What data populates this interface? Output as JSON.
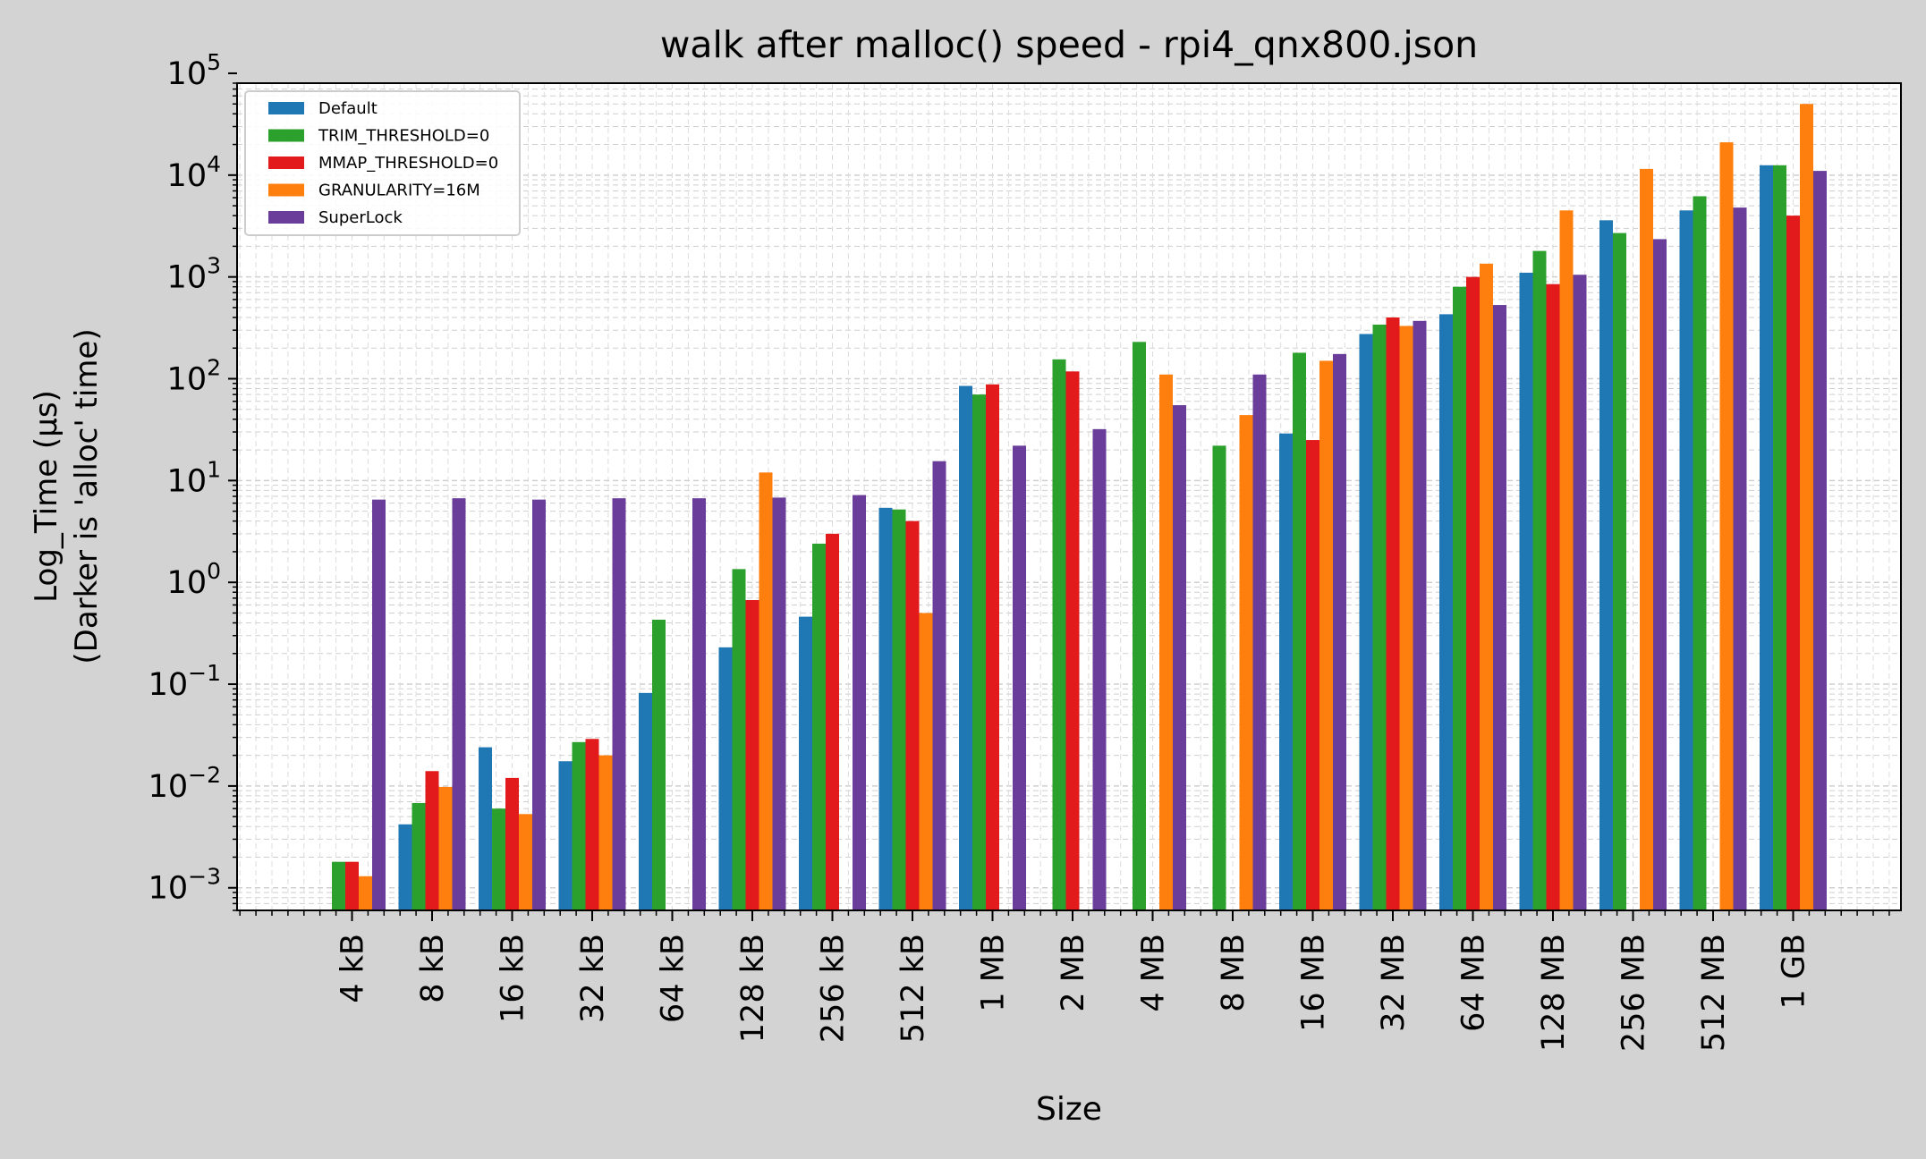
{
  "chart_data": {
    "type": "bar",
    "title": "walk after malloc() speed - rpi4_qnx800.json",
    "xlabel": "Size",
    "ylabel": [
      "Log_Time (µs)",
      "(Darker is 'alloc' time)"
    ],
    "yscale": "log",
    "ylim": [
      0.0006,
      80000
    ],
    "yticks": [
      {
        "value": 0.001,
        "base": "10",
        "exp": "−3"
      },
      {
        "value": 0.01,
        "base": "10",
        "exp": "−2"
      },
      {
        "value": 0.1,
        "base": "10",
        "exp": "−1"
      },
      {
        "value": 1,
        "base": "10",
        "exp": "0"
      },
      {
        "value": 10,
        "base": "10",
        "exp": "1"
      },
      {
        "value": 100,
        "base": "10",
        "exp": "2"
      },
      {
        "value": 1000,
        "base": "10",
        "exp": "3"
      },
      {
        "value": 10000,
        "base": "10",
        "exp": "4"
      },
      {
        "value": 100000,
        "base": "10",
        "exp": "5"
      }
    ],
    "grid": true,
    "legend_position": "top-left",
    "categories": [
      "4 kB",
      "8 kB",
      "16 kB",
      "32 kB",
      "64 kB",
      "128 kB",
      "256 kB",
      "512 kB",
      "1 MB",
      "2 MB",
      "4 MB",
      "8 MB",
      "16 MB",
      "32 MB",
      "64 MB",
      "128 MB",
      "256 MB",
      "512 MB",
      "1 GB"
    ],
    "series": [
      {
        "name": "Default",
        "color": "#1f77b4",
        "values": [
          null,
          0.0042,
          0.024,
          0.0175,
          0.082,
          0.23,
          0.46,
          5.4,
          85,
          null,
          null,
          null,
          29,
          275,
          430,
          1100,
          3600,
          4500,
          12500
        ]
      },
      {
        "name": "TRIM_THRESHOLD=0",
        "color": "#2ca02c",
        "values": [
          0.0018,
          0.0068,
          0.006,
          0.027,
          0.43,
          1.35,
          2.4,
          5.2,
          70,
          155,
          230,
          22,
          180,
          340,
          800,
          1800,
          2700,
          6200,
          12500
        ]
      },
      {
        "name": "MMAP_THRESHOLD=0",
        "color": "#e31a1c",
        "values": [
          0.0018,
          0.014,
          0.012,
          0.029,
          null,
          0.67,
          3.0,
          4.0,
          88,
          118,
          null,
          null,
          25,
          400,
          1000,
          850,
          null,
          null,
          4000
        ]
      },
      {
        "name": "GRANULARITY=16M",
        "color": "#ff7f0e",
        "values": [
          0.0013,
          0.0098,
          0.0053,
          0.02,
          null,
          12,
          null,
          0.5,
          null,
          null,
          110,
          44,
          150,
          330,
          1350,
          4500,
          11500,
          21000,
          50000
        ]
      },
      {
        "name": "SuperLock",
        "color": "#6a3d9a",
        "values": [
          6.5,
          6.7,
          6.5,
          6.7,
          6.7,
          6.8,
          7.2,
          15.5,
          22,
          32,
          55,
          110,
          175,
          370,
          530,
          1050,
          2350,
          4800,
          11000
        ]
      }
    ]
  }
}
